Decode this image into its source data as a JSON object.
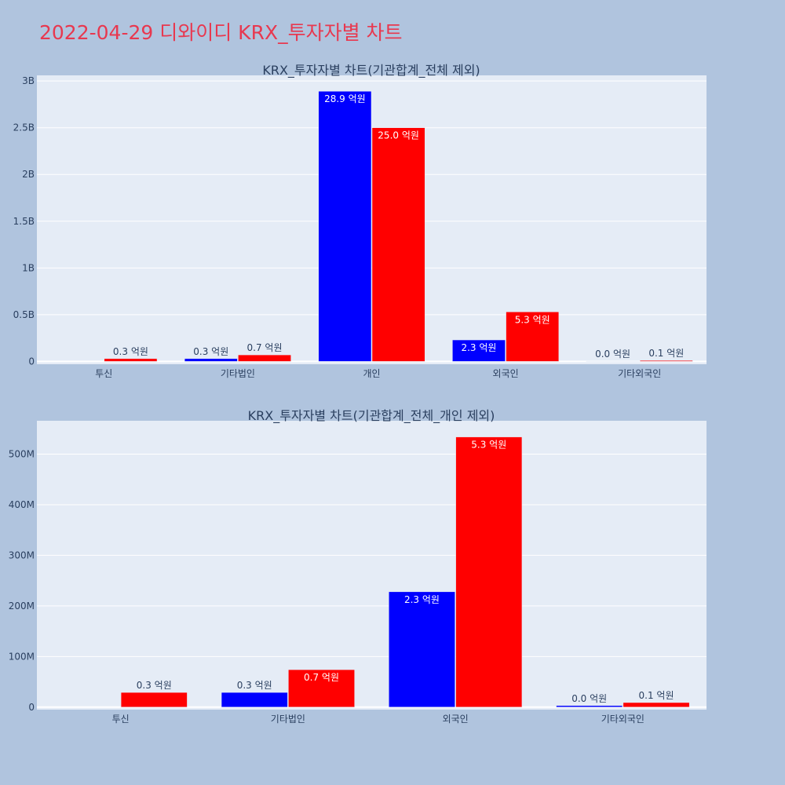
{
  "page": {
    "title": "2022-04-29 디와이디 KRX_투자자별 차트"
  },
  "colors": {
    "background": "#b0c4de",
    "plot_background": "#e5ecf6",
    "grid": "#ffffff",
    "title": "#e8384f",
    "text": "#2a3f5f",
    "series_1": "#0000ff",
    "series_2": "#ff0000"
  },
  "chart_data": [
    {
      "type": "bar",
      "title": "KRX_투자자별 차트(기관합계_전체 제외)",
      "categories": [
        "투신",
        "기타법인",
        "개인",
        "외국인",
        "기타외국인"
      ],
      "series": [
        {
          "values": [
            0,
            30000000,
            2890000000,
            230000000,
            3000000
          ],
          "labels": [
            "",
            "0.3 억원",
            "28.9 억원",
            "2.3 억원",
            "0.0 억원"
          ]
        },
        {
          "values": [
            30000000,
            70000000,
            2500000000,
            530000000,
            10000000
          ],
          "labels": [
            "0.3 억원",
            "0.7 억원",
            "25.0 억원",
            "5.3 억원",
            "0.1 억원"
          ]
        }
      ],
      "ylim": [
        -30000000,
        3060000000
      ],
      "yticks": [
        0,
        500000000,
        1000000000,
        1500000000,
        2000000000,
        2500000000,
        3000000000
      ],
      "ytick_labels": [
        "0",
        "0.5B",
        "1B",
        "1.5B",
        "2B",
        "2.5B",
        "3B"
      ],
      "grid": true,
      "legend": "none"
    },
    {
      "type": "bar",
      "title": "KRX_투자자별 차트(기관합계_전체_개인 제외)",
      "categories": [
        "투신",
        "기타법인",
        "외국인",
        "기타외국인"
      ],
      "series": [
        {
          "values": [
            0,
            29000000,
            228000000,
            3000000
          ],
          "labels": [
            "",
            "0.3 억원",
            "2.3 억원",
            "0.0 억원"
          ]
        },
        {
          "values": [
            29000000,
            74000000,
            534000000,
            9000000
          ],
          "labels": [
            "0.3 억원",
            "0.7 억원",
            "5.3 억원",
            "0.1 억원"
          ]
        }
      ],
      "ylim": [
        -5000000,
        566000000
      ],
      "yticks": [
        0,
        100000000,
        200000000,
        300000000,
        400000000,
        500000000
      ],
      "ytick_labels": [
        "0",
        "100M",
        "200M",
        "300M",
        "400M",
        "500M"
      ],
      "grid": true,
      "legend": "none"
    }
  ]
}
